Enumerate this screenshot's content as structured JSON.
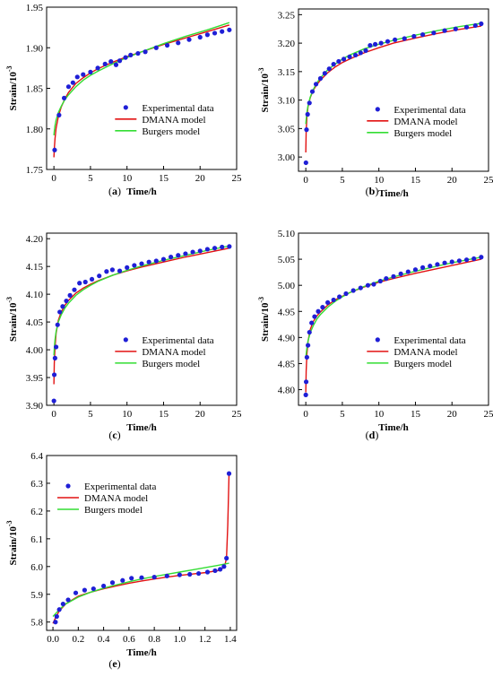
{
  "colors": {
    "experimental": "#1f1fd6",
    "dmana": "#e21212",
    "burgers": "#33dd33",
    "axis": "#000000"
  },
  "chart_data": [
    {
      "panel": "a",
      "type": "scatter",
      "caption_letter": "a",
      "xlabel": "Time/h",
      "ylabel": "Strain/10",
      "ylabel_superscript": "-3",
      "xlim": [
        -1,
        25
      ],
      "ylim": [
        1.75,
        1.95
      ],
      "xticks": [
        0,
        5,
        10,
        15,
        20,
        25
      ],
      "yticks": [
        1.75,
        1.8,
        1.85,
        1.9,
        1.95
      ],
      "xtick_labels": [
        "0",
        "5",
        "10",
        "15",
        "20",
        "25"
      ],
      "ytick_labels": [
        "1.75",
        "1.80",
        "1.85",
        "1.90",
        "1.95"
      ],
      "legend_position": "lower-center",
      "series": [
        {
          "name": "Experimental data",
          "kind": "points",
          "x": [
            0.1,
            0.7,
            1.4,
            2.0,
            2.6,
            3.2,
            4.0,
            5.0,
            6.0,
            7.0,
            7.8,
            8.5,
            9.0,
            9.8,
            10.5,
            11.5,
            12.5,
            14.0,
            15.5,
            17.0,
            18.5,
            20.0,
            21.0,
            22.0,
            23.0,
            24.0
          ],
          "y": [
            1.774,
            1.817,
            1.838,
            1.852,
            1.857,
            1.864,
            1.867,
            1.87,
            1.875,
            1.88,
            1.883,
            1.879,
            1.884,
            1.888,
            1.891,
            1.893,
            1.895,
            1.9,
            1.903,
            1.906,
            1.91,
            1.913,
            1.916,
            1.918,
            1.92,
            1.922
          ]
        },
        {
          "name": "DMANA model",
          "kind": "line",
          "x": [
            0,
            0.05,
            0.15,
            0.3,
            0.6,
            1,
            1.5,
            2,
            3,
            4,
            5,
            6,
            8,
            10,
            12,
            15,
            18,
            21,
            24
          ],
          "y": [
            1.765,
            1.775,
            1.788,
            1.801,
            1.815,
            1.827,
            1.837,
            1.845,
            1.856,
            1.863,
            1.869,
            1.874,
            1.882,
            1.889,
            1.895,
            1.904,
            1.912,
            1.92,
            1.928
          ]
        },
        {
          "name": "Burgers model",
          "kind": "line",
          "x": [
            0,
            0.05,
            0.15,
            0.3,
            0.6,
            1,
            1.5,
            2,
            3,
            4,
            5,
            6,
            8,
            10,
            12,
            15,
            18,
            21,
            24
          ],
          "y": [
            1.792,
            1.797,
            1.804,
            1.811,
            1.82,
            1.828,
            1.836,
            1.842,
            1.852,
            1.86,
            1.866,
            1.871,
            1.88,
            1.888,
            1.895,
            1.905,
            1.914,
            1.922,
            1.931
          ]
        }
      ]
    },
    {
      "panel": "b",
      "type": "scatter",
      "caption_letter": "b",
      "xlabel": "Time/h",
      "ylabel": "Strain/10",
      "ylabel_superscript": "-3",
      "xlim": [
        -1,
        25
      ],
      "ylim": [
        2.975,
        3.26
      ],
      "xticks": [
        0,
        5,
        10,
        15,
        20,
        25
      ],
      "yticks": [
        3.0,
        3.05,
        3.1,
        3.15,
        3.2,
        3.25
      ],
      "xtick_labels": [
        "0",
        "5",
        "10",
        "15",
        "20",
        "25"
      ],
      "ytick_labels": [
        "3.00",
        "3.05",
        "3.10",
        "3.15",
        "3.20",
        "3.25"
      ],
      "legend_position": "lower-center",
      "series": [
        {
          "name": "Experimental data",
          "kind": "points",
          "x": [
            0.02,
            0.1,
            0.25,
            0.5,
            0.9,
            1.4,
            2.0,
            2.6,
            3.2,
            3.8,
            4.5,
            5.2,
            6.0,
            6.8,
            7.5,
            8.2,
            8.8,
            9.5,
            10.3,
            11.2,
            12.2,
            13.5,
            14.8,
            16.0,
            17.5,
            19.0,
            20.5,
            22.0,
            23.2,
            24.0
          ],
          "y": [
            2.99,
            3.048,
            3.075,
            3.095,
            3.115,
            3.128,
            3.138,
            3.147,
            3.155,
            3.163,
            3.168,
            3.172,
            3.176,
            3.179,
            3.183,
            3.187,
            3.196,
            3.198,
            3.2,
            3.203,
            3.206,
            3.208,
            3.212,
            3.215,
            3.218,
            3.222,
            3.225,
            3.228,
            3.231,
            3.234
          ]
        },
        {
          "name": "DMANA model",
          "kind": "line",
          "x": [
            0,
            0.05,
            0.15,
            0.3,
            0.6,
            1,
            1.5,
            2,
            3,
            4,
            5,
            6,
            8,
            10,
            12,
            15,
            18,
            21,
            24
          ],
          "y": [
            3.008,
            3.045,
            3.07,
            3.088,
            3.104,
            3.117,
            3.127,
            3.135,
            3.148,
            3.158,
            3.166,
            3.172,
            3.183,
            3.192,
            3.2,
            3.209,
            3.217,
            3.224,
            3.23
          ]
        },
        {
          "name": "Burgers model",
          "kind": "line",
          "x": [
            0,
            0.05,
            0.15,
            0.3,
            0.6,
            1,
            1.5,
            2,
            3,
            4,
            5,
            6,
            8,
            10,
            12,
            15,
            18,
            21,
            24
          ],
          "y": [
            3.058,
            3.066,
            3.078,
            3.09,
            3.105,
            3.118,
            3.13,
            3.139,
            3.153,
            3.163,
            3.172,
            3.179,
            3.19,
            3.198,
            3.205,
            3.214,
            3.222,
            3.229,
            3.235
          ]
        }
      ]
    },
    {
      "panel": "c",
      "type": "scatter",
      "caption_letter": "c",
      "xlabel": "Time/h",
      "ylabel": "Strain/10",
      "ylabel_superscript": "-3",
      "xlim": [
        -1,
        25
      ],
      "ylim": [
        3.9,
        4.21
      ],
      "xticks": [
        0,
        5,
        10,
        15,
        20,
        25
      ],
      "yticks": [
        3.9,
        3.95,
        4.0,
        4.05,
        4.1,
        4.15,
        4.2
      ],
      "xtick_labels": [
        "0",
        "5",
        "10",
        "15",
        "20",
        "25"
      ],
      "ytick_labels": [
        "3.90",
        "3.95",
        "4.00",
        "4.05",
        "4.10",
        "4.15",
        "4.20"
      ],
      "legend_position": "lower-center",
      "series": [
        {
          "name": "Experimental data",
          "kind": "points",
          "x": [
            0.0,
            0.05,
            0.15,
            0.3,
            0.5,
            0.8,
            1.2,
            1.7,
            2.2,
            2.8,
            3.5,
            4.3,
            5.2,
            6.2,
            7.2,
            8.0,
            9.0,
            10.0,
            11.0,
            12.0,
            13.0,
            14.0,
            15.0,
            16.0,
            17.0,
            18.0,
            19.0,
            20.0,
            21.0,
            22.0,
            23.0,
            24.0
          ],
          "y": [
            3.908,
            3.955,
            3.985,
            4.005,
            4.045,
            4.068,
            4.078,
            4.088,
            4.098,
            4.108,
            4.12,
            4.122,
            4.127,
            4.133,
            4.141,
            4.144,
            4.142,
            4.148,
            4.152,
            4.155,
            4.158,
            4.16,
            4.163,
            4.167,
            4.17,
            4.173,
            4.176,
            4.178,
            4.181,
            4.183,
            4.185,
            4.186
          ]
        },
        {
          "name": "DMANA model",
          "kind": "line",
          "x": [
            0,
            0.05,
            0.15,
            0.3,
            0.6,
            1,
            1.5,
            2,
            3,
            4,
            5,
            6,
            8,
            10,
            12,
            15,
            18,
            21,
            24
          ],
          "y": [
            3.938,
            3.975,
            4.005,
            4.03,
            4.053,
            4.068,
            4.08,
            4.089,
            4.102,
            4.111,
            4.118,
            4.124,
            4.134,
            4.142,
            4.149,
            4.158,
            4.167,
            4.175,
            4.183
          ]
        },
        {
          "name": "Burgers model",
          "kind": "line",
          "x": [
            0,
            0.05,
            0.15,
            0.3,
            0.6,
            1,
            1.5,
            2,
            3,
            4,
            5,
            6,
            8,
            10,
            12,
            15,
            18,
            21,
            24
          ],
          "y": [
            3.99,
            4.002,
            4.018,
            4.033,
            4.05,
            4.063,
            4.075,
            4.084,
            4.098,
            4.108,
            4.116,
            4.123,
            4.134,
            4.143,
            4.151,
            4.161,
            4.17,
            4.179,
            4.187
          ]
        }
      ]
    },
    {
      "panel": "d",
      "type": "scatter",
      "caption_letter": "d",
      "xlabel": "Time/h",
      "ylabel": "Strain/10",
      "ylabel_superscript": "-3",
      "xlim": [
        -1,
        25
      ],
      "ylim": [
        4.77,
        5.1
      ],
      "xticks": [
        0,
        5,
        10,
        15,
        20,
        25
      ],
      "yticks": [
        4.8,
        4.85,
        4.9,
        4.95,
        5.0,
        5.05,
        5.1
      ],
      "xtick_labels": [
        "0",
        "5",
        "10",
        "15",
        "20",
        "25"
      ],
      "ytick_labels": [
        "4.80",
        "4.85",
        "4.90",
        "4.95",
        "5.00",
        "5.05",
        "5.10"
      ],
      "legend_position": "lower-center",
      "series": [
        {
          "name": "Experimental data",
          "kind": "points",
          "x": [
            0.0,
            0.05,
            0.15,
            0.3,
            0.5,
            0.8,
            1.2,
            1.7,
            2.3,
            3.0,
            3.8,
            4.6,
            5.5,
            6.5,
            7.5,
            8.5,
            9.3,
            10.2,
            11.0,
            12.0,
            13.0,
            14.0,
            15.0,
            16.0,
            17.0,
            18.0,
            19.0,
            20.0,
            21.0,
            22.0,
            23.0,
            24.0
          ],
          "y": [
            4.79,
            4.815,
            4.862,
            4.885,
            4.91,
            4.928,
            4.94,
            4.95,
            4.958,
            4.967,
            4.972,
            4.978,
            4.984,
            4.99,
            4.995,
            5.0,
            5.002,
            5.008,
            5.013,
            5.017,
            5.022,
            5.026,
            5.03,
            5.034,
            5.037,
            5.04,
            5.043,
            5.045,
            5.047,
            5.049,
            5.051,
            5.054
          ]
        },
        {
          "name": "DMANA model",
          "kind": "line",
          "x": [
            0,
            0.05,
            0.15,
            0.3,
            0.6,
            1,
            1.5,
            2,
            3,
            4,
            5,
            6,
            8,
            10,
            12,
            15,
            18,
            21,
            24
          ],
          "y": [
            4.795,
            4.835,
            4.868,
            4.892,
            4.915,
            4.93,
            4.941,
            4.949,
            4.962,
            4.972,
            4.979,
            4.986,
            4.997,
            5.006,
            5.013,
            5.023,
            5.032,
            5.041,
            5.05
          ]
        },
        {
          "name": "Burgers model",
          "kind": "line",
          "x": [
            0,
            0.05,
            0.15,
            0.3,
            0.6,
            1,
            1.5,
            2,
            3,
            4,
            5,
            6,
            8,
            10,
            12,
            15,
            18,
            21,
            24
          ],
          "y": [
            4.86,
            4.868,
            4.88,
            4.893,
            4.909,
            4.922,
            4.935,
            4.944,
            4.958,
            4.969,
            4.978,
            4.986,
            4.998,
            5.008,
            5.016,
            5.027,
            5.037,
            5.046,
            5.054
          ]
        }
      ]
    },
    {
      "panel": "e",
      "type": "scatter",
      "caption_letter": "e",
      "xlabel": "Time/h",
      "ylabel": "Strain/10",
      "ylabel_superscript": "-3",
      "xlim": [
        -0.05,
        1.45
      ],
      "ylim": [
        5.77,
        6.4
      ],
      "xticks": [
        0.0,
        0.2,
        0.4,
        0.6,
        0.8,
        1.0,
        1.2,
        1.4
      ],
      "yticks": [
        5.8,
        5.9,
        6.0,
        6.1,
        6.2,
        6.3,
        6.4
      ],
      "xtick_labels": [
        "0.0",
        "0.2",
        "0.4",
        "0.6",
        "0.8",
        "1.0",
        "1.2",
        "1.4"
      ],
      "ytick_labels": [
        "5.8",
        "5.9",
        "6.0",
        "6.1",
        "6.2",
        "6.3",
        "6.4"
      ],
      "legend_position": "top-left",
      "series": [
        {
          "name": "Experimental data",
          "kind": "points",
          "x": [
            0.02,
            0.03,
            0.05,
            0.08,
            0.12,
            0.18,
            0.25,
            0.32,
            0.4,
            0.47,
            0.55,
            0.62,
            0.7,
            0.8,
            0.9,
            1.0,
            1.08,
            1.15,
            1.22,
            1.28,
            1.32,
            1.35,
            1.37,
            1.39
          ],
          "y": [
            5.8,
            5.82,
            5.845,
            5.865,
            5.88,
            5.905,
            5.915,
            5.92,
            5.93,
            5.942,
            5.95,
            5.958,
            5.96,
            5.962,
            5.966,
            5.97,
            5.972,
            5.975,
            5.98,
            5.985,
            5.99,
            6.0,
            6.03,
            6.335
          ]
        },
        {
          "name": "DMANA model",
          "kind": "line",
          "x": [
            0.0,
            0.02,
            0.05,
            0.1,
            0.2,
            0.3,
            0.4,
            0.5,
            0.6,
            0.7,
            0.8,
            0.9,
            1.0,
            1.1,
            1.2,
            1.3,
            1.33,
            1.35,
            1.36,
            1.37,
            1.38,
            1.39
          ],
          "y": [
            5.795,
            5.815,
            5.84,
            5.865,
            5.893,
            5.908,
            5.92,
            5.93,
            5.94,
            5.948,
            5.955,
            5.962,
            5.968,
            5.973,
            5.978,
            5.985,
            5.99,
            6.0,
            6.01,
            6.03,
            6.15,
            6.335
          ]
        },
        {
          "name": "Burgers model",
          "kind": "line",
          "x": [
            0.0,
            0.02,
            0.05,
            0.1,
            0.2,
            0.3,
            0.4,
            0.5,
            0.6,
            0.7,
            0.8,
            0.9,
            1.0,
            1.1,
            1.2,
            1.3,
            1.39
          ],
          "y": [
            5.82,
            5.83,
            5.845,
            5.865,
            5.89,
            5.908,
            5.922,
            5.934,
            5.945,
            5.955,
            5.964,
            5.972,
            5.98,
            5.988,
            5.996,
            6.004,
            6.012
          ]
        }
      ]
    }
  ]
}
